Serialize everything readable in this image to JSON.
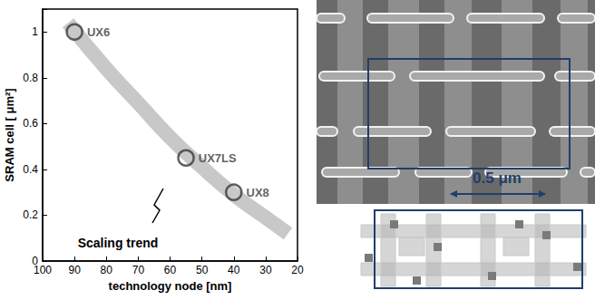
{
  "chart_data": {
    "type": "scatter",
    "x_label": "technology node [nm]",
    "y_label": "SRAM cell [ μm²]",
    "x": [
      90,
      55,
      40
    ],
    "values": [
      1.0,
      0.45,
      0.3
    ],
    "point_labels": [
      "UX6",
      "UX7LS",
      "UX8"
    ],
    "marker": "circle",
    "color": "#3a3a3a",
    "xlim": [
      100,
      20
    ],
    "xticks": [
      100,
      90,
      80,
      70,
      60,
      50,
      40,
      30,
      20
    ],
    "ylim": [
      0,
      1.1
    ],
    "yticks": [
      0,
      0.2,
      0.4,
      0.6,
      0.8,
      1
    ],
    "grid": false,
    "trend": {
      "label": "Scaling trend",
      "type": "line",
      "line_style": "band",
      "color": "#c8c8c8",
      "x": [
        92,
        80,
        70,
        60,
        50,
        40,
        30,
        23
      ],
      "values": [
        1.04,
        0.84,
        0.69,
        0.54,
        0.41,
        0.29,
        0.19,
        0.12
      ]
    }
  },
  "sem_image": {
    "scale_bar": "0.5 μm"
  }
}
